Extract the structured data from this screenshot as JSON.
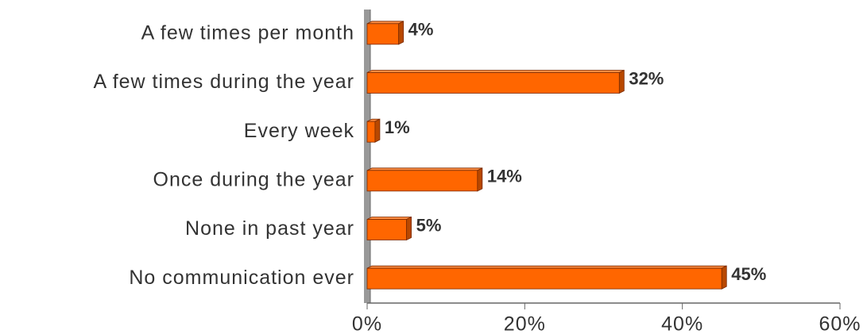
{
  "chart_data": {
    "type": "bar",
    "orientation": "horizontal",
    "categories": [
      "A few times per month",
      "A few times during the year",
      "Every week",
      "Once during the year",
      "None in past year",
      "No communication ever"
    ],
    "values": [
      4,
      32,
      1,
      14,
      5,
      45
    ],
    "value_labels": [
      "4%",
      "32%",
      "1%",
      "14%",
      "5%",
      "45%"
    ],
    "color": "#ff6600",
    "xlim": [
      0,
      60
    ],
    "xticks": [
      {
        "value": 0,
        "label": "0%"
      },
      {
        "value": 20,
        "label": "20%"
      },
      {
        "value": 40,
        "label": "40%"
      },
      {
        "value": 60,
        "label": "60%"
      }
    ]
  }
}
